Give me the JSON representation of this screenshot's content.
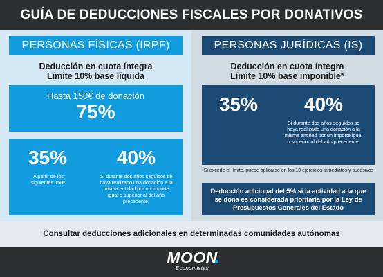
{
  "title": "GUÍA DE DEDUCCIONES FISCALES POR DONATIVOS",
  "colors": {
    "light_blue": "#129ce0",
    "dark_blue": "#1b4a75",
    "dark_bar": "#2d2e30"
  },
  "left": {
    "header": "PERSONAS FÍSICAS (IRPF)",
    "subtitle_line1": "Deducción en cuota íntegra",
    "subtitle_line2": "Límite 10% base líquida",
    "box1_label": "Hasta 150€ de donación",
    "box1_percent": "75%",
    "box2_percent_a": "35%",
    "box2_note_a": "A partir de los siguientes 150€",
    "box2_percent_b": "40%",
    "box2_note_b": "Si durante dos años seguidos se haya realizado una donación a la misma entidad por un importe igual o superior al del año precedente."
  },
  "right": {
    "header": "PERSONAS JURÍDICAS (IS)",
    "subtitle_line1": "Deducción en cuota íntegra",
    "subtitle_line2": "Límite 10% base imponible*",
    "percent_a": "35%",
    "percent_b": "40%",
    "note_b": "Si durante dos años seguidos se haya realizado una donación a la misma entidad por un importe igual o superior al del año precedente.",
    "asterisk_note": "*Si excede el límite, puede aplicarse en los 10 ejercicios inmediatos y sucesivos",
    "additional": "Deducción adicional del 5% si la actividad a la que se dona es considerada prioritaria por la Ley de Presupuestos Generales del Estado"
  },
  "footer_text": "Consultar deducciones adicionales en determinadas comunidades autónomas",
  "logo": {
    "name": "MOON",
    "tagline": "Economistas"
  }
}
